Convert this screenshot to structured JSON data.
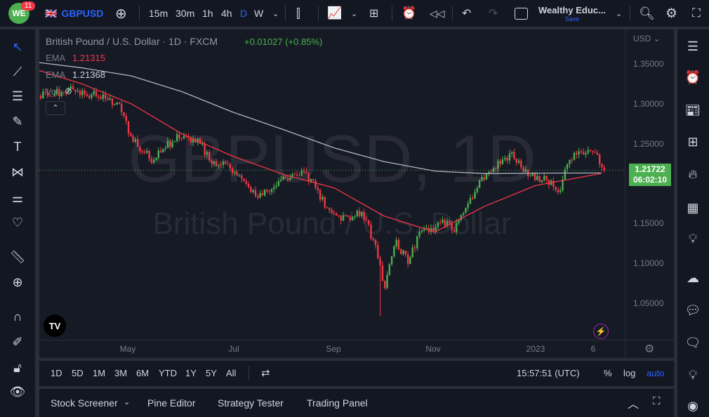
{
  "topbar": {
    "notifications": "11",
    "symbol": "GBPUSD",
    "intervals": [
      "15m",
      "30m",
      "1h",
      "4h",
      "D",
      "W"
    ],
    "active_interval": "D",
    "layout_name": "Wealthy Educ...",
    "save_label": "Save"
  },
  "legend": {
    "title": "British Pound / U.S. Dollar · 1D · FXCM",
    "change": "+0.01027 (+0.85%)",
    "ema1_label": "EMA",
    "ema1_value": "1.21315",
    "ema2_label": "EMA",
    "ema2_value": "1.21368",
    "vol_label": "Vol"
  },
  "watermark": {
    "line1": "GBPUSD, 1D",
    "line2": "British Pound / U.S. Dollar"
  },
  "price_axis": {
    "currency": "USD",
    "ticks": [
      "1.35000",
      "1.30000",
      "1.25000",
      "1.15000",
      "1.10000",
      "1.05000"
    ],
    "last_price": "1.21722",
    "countdown": "06:02:10"
  },
  "time_axis": {
    "ticks": [
      "May",
      "Jul",
      "Sep",
      "Nov",
      "2023",
      "6"
    ]
  },
  "bottombar": {
    "ranges": [
      "1D",
      "5D",
      "1M",
      "3M",
      "6M",
      "YTD",
      "1Y",
      "5Y",
      "All"
    ],
    "clock": "15:57:51 (UTC)",
    "percent": "%",
    "log": "log",
    "auto": "auto"
  },
  "panel": {
    "tabs": [
      "Stock Screener",
      "Pine Editor",
      "Strategy Tester",
      "Trading Panel"
    ]
  },
  "colors": {
    "up": "#26a69a",
    "down": "#ef5350",
    "candle_up": "#4caf50",
    "candle_down": "#f23645",
    "ema_red": "#f23645",
    "ema_white": "#b2b5be",
    "accent": "#2962ff",
    "price_label": "#4caf50"
  },
  "chart_data": {
    "type": "candlestick",
    "symbol": "GBPUSD",
    "timeframe": "1D",
    "ylim": [
      1.02,
      1.37
    ],
    "weekly_close": [
      {
        "date": "2022-03-07",
        "close": 1.31
      },
      {
        "date": "2022-03-14",
        "close": 1.315
      },
      {
        "date": "2022-03-21",
        "close": 1.318
      },
      {
        "date": "2022-03-28",
        "close": 1.312
      },
      {
        "date": "2022-04-04",
        "close": 1.31
      },
      {
        "date": "2022-04-11",
        "close": 1.305
      },
      {
        "date": "2022-04-18",
        "close": 1.3
      },
      {
        "date": "2022-04-25",
        "close": 1.26
      },
      {
        "date": "2022-05-02",
        "close": 1.24
      },
      {
        "date": "2022-05-09",
        "close": 1.23
      },
      {
        "date": "2022-05-16",
        "close": 1.245
      },
      {
        "date": "2022-05-23",
        "close": 1.262
      },
      {
        "date": "2022-05-30",
        "close": 1.258
      },
      {
        "date": "2022-06-06",
        "close": 1.25
      },
      {
        "date": "2022-06-13",
        "close": 1.225
      },
      {
        "date": "2022-06-20",
        "close": 1.228
      },
      {
        "date": "2022-06-27",
        "close": 1.215
      },
      {
        "date": "2022-07-04",
        "close": 1.2
      },
      {
        "date": "2022-07-11",
        "close": 1.183
      },
      {
        "date": "2022-07-18",
        "close": 1.19
      },
      {
        "date": "2022-07-25",
        "close": 1.205
      },
      {
        "date": "2022-08-01",
        "close": 1.212
      },
      {
        "date": "2022-08-08",
        "close": 1.215
      },
      {
        "date": "2022-08-15",
        "close": 1.195
      },
      {
        "date": "2022-08-22",
        "close": 1.17
      },
      {
        "date": "2022-08-29",
        "close": 1.16
      },
      {
        "date": "2022-09-05",
        "close": 1.155
      },
      {
        "date": "2022-09-12",
        "close": 1.165
      },
      {
        "date": "2022-09-19",
        "close": 1.13
      },
      {
        "date": "2022-09-26",
        "close": 1.07,
        "low": 1.035
      },
      {
        "date": "2022-10-03",
        "close": 1.13
      },
      {
        "date": "2022-10-10",
        "close": 1.1
      },
      {
        "date": "2022-10-17",
        "close": 1.14
      },
      {
        "date": "2022-10-24",
        "close": 1.145
      },
      {
        "date": "2022-10-31",
        "close": 1.155
      },
      {
        "date": "2022-11-07",
        "close": 1.14
      },
      {
        "date": "2022-11-14",
        "close": 1.17
      },
      {
        "date": "2022-11-21",
        "close": 1.195
      },
      {
        "date": "2022-11-28",
        "close": 1.215
      },
      {
        "date": "2022-12-05",
        "close": 1.225
      },
      {
        "date": "2022-12-12",
        "close": 1.24
      },
      {
        "date": "2022-12-19",
        "close": 1.215
      },
      {
        "date": "2022-12-26",
        "close": 1.205
      },
      {
        "date": "2023-01-02",
        "close": 1.205
      },
      {
        "date": "2023-01-09",
        "close": 1.19
      },
      {
        "date": "2023-01-16",
        "close": 1.23
      },
      {
        "date": "2023-01-23",
        "close": 1.24
      },
      {
        "date": "2023-01-30",
        "close": 1.24
      },
      {
        "date": "2023-02-06",
        "close": 1.217
      }
    ],
    "ema_white": [
      {
        "date": "2022-03-01",
        "value": 1.353
      },
      {
        "date": "2022-04-01",
        "value": 1.345
      },
      {
        "date": "2022-05-01",
        "value": 1.335
      },
      {
        "date": "2022-06-01",
        "value": 1.315
      },
      {
        "date": "2022-07-01",
        "value": 1.29
      },
      {
        "date": "2022-08-01",
        "value": 1.268
      },
      {
        "date": "2022-09-01",
        "value": 1.245
      },
      {
        "date": "2022-10-01",
        "value": 1.228
      },
      {
        "date": "2022-11-01",
        "value": 1.216
      },
      {
        "date": "2022-12-01",
        "value": 1.213
      },
      {
        "date": "2023-01-01",
        "value": 1.2135
      },
      {
        "date": "2023-02-10",
        "value": 1.21368
      }
    ],
    "ema_red": [
      {
        "date": "2022-03-01",
        "value": 1.345
      },
      {
        "date": "2022-04-01",
        "value": 1.325
      },
      {
        "date": "2022-05-01",
        "value": 1.3
      },
      {
        "date": "2022-06-01",
        "value": 1.262
      },
      {
        "date": "2022-07-01",
        "value": 1.235
      },
      {
        "date": "2022-08-01",
        "value": 1.212
      },
      {
        "date": "2022-09-01",
        "value": 1.195
      },
      {
        "date": "2022-10-01",
        "value": 1.16
      },
      {
        "date": "2022-11-01",
        "value": 1.14
      },
      {
        "date": "2022-12-01",
        "value": 1.172
      },
      {
        "date": "2023-01-01",
        "value": 1.198
      },
      {
        "date": "2023-02-10",
        "value": 1.21315
      }
    ]
  }
}
